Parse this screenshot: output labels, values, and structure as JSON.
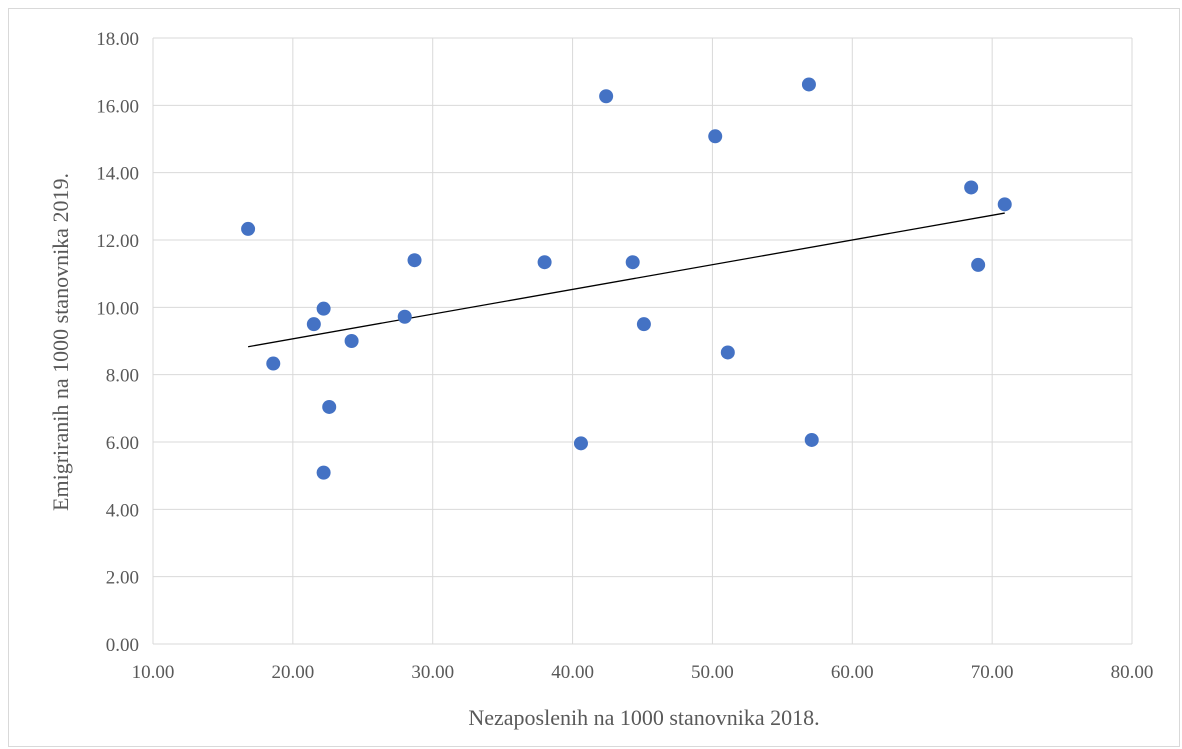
{
  "chart_data": {
    "type": "scatter",
    "title": "",
    "xlabel": "Nezaposlenih na 1000 stanovnika 2018.",
    "ylabel": "Emigriranih na 1000 stanovnika 2019.",
    "xlim": [
      10,
      80
    ],
    "ylim": [
      0,
      18
    ],
    "x_ticks": [
      10,
      20,
      30,
      40,
      50,
      60,
      70,
      80
    ],
    "y_ticks": [
      0,
      2,
      4,
      6,
      8,
      10,
      12,
      14,
      16,
      18
    ],
    "x_tick_labels": [
      "10.00",
      "20.00",
      "30.00",
      "40.00",
      "50.00",
      "60.00",
      "70.00",
      "80.00"
    ],
    "y_tick_labels": [
      "0.00",
      "2.00",
      "4.00",
      "6.00",
      "8.00",
      "10.00",
      "12.00",
      "14.00",
      "16.00",
      "18.00"
    ],
    "grid": true,
    "legend": "none",
    "marker_color": "#4472c4",
    "trendline_color": "#000000",
    "series": [
      {
        "points": [
          [
            16.8,
            12.33
          ],
          [
            18.6,
            8.33
          ],
          [
            21.5,
            9.5
          ],
          [
            22.2,
            9.96
          ],
          [
            22.2,
            5.09
          ],
          [
            22.6,
            7.04
          ],
          [
            24.2,
            9.0
          ],
          [
            28.0,
            9.72
          ],
          [
            28.7,
            11.4
          ],
          [
            38.0,
            11.34
          ],
          [
            40.6,
            5.96
          ],
          [
            42.4,
            16.27
          ],
          [
            44.3,
            11.34
          ],
          [
            45.1,
            9.5
          ],
          [
            50.2,
            15.08
          ],
          [
            51.1,
            8.66
          ],
          [
            56.9,
            16.62
          ],
          [
            57.1,
            6.06
          ],
          [
            68.5,
            13.56
          ],
          [
            69.0,
            11.26
          ],
          [
            70.9,
            13.06
          ]
        ]
      }
    ],
    "trendline": {
      "type": "linear",
      "x_range": [
        16.8,
        70.9
      ],
      "y_values": [
        8.83,
        12.8
      ]
    }
  }
}
